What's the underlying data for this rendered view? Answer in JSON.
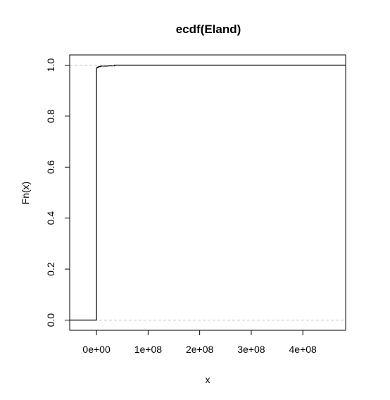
{
  "chart_data": {
    "type": "line",
    "title": "ecdf(Eland)",
    "xlabel": "x",
    "ylabel": "Fn(x)",
    "xlim": [
      -52000000,
      483000000
    ],
    "ylim": [
      -0.04,
      1.04
    ],
    "x_ticks": [
      0,
      100000000,
      200000000,
      300000000,
      400000000
    ],
    "x_tick_labels": [
      "0e+00",
      "1e+08",
      "2e+08",
      "3e+08",
      "4e+08"
    ],
    "y_ticks": [
      0.0,
      0.2,
      0.4,
      0.6,
      0.8,
      1.0
    ],
    "y_tick_labels": [
      "0.0",
      "0.2",
      "0.4",
      "0.6",
      "0.8",
      "1.0"
    ],
    "reference_lines": [
      0,
      1
    ],
    "grid": false,
    "series": [
      {
        "step_points": [
          [
            -52000000,
            0
          ],
          [
            0,
            0
          ],
          [
            0,
            0.99
          ],
          [
            2000000,
            0.99
          ],
          [
            2000000,
            0.992
          ],
          [
            4000000,
            0.992
          ],
          [
            4000000,
            0.994
          ],
          [
            8000000,
            0.994
          ],
          [
            8000000,
            0.996
          ],
          [
            22000000,
            0.996
          ],
          [
            22000000,
            0.997
          ],
          [
            35000000,
            0.997
          ],
          [
            35000000,
            1.0
          ],
          [
            483000000,
            1.0
          ]
        ]
      }
    ]
  }
}
